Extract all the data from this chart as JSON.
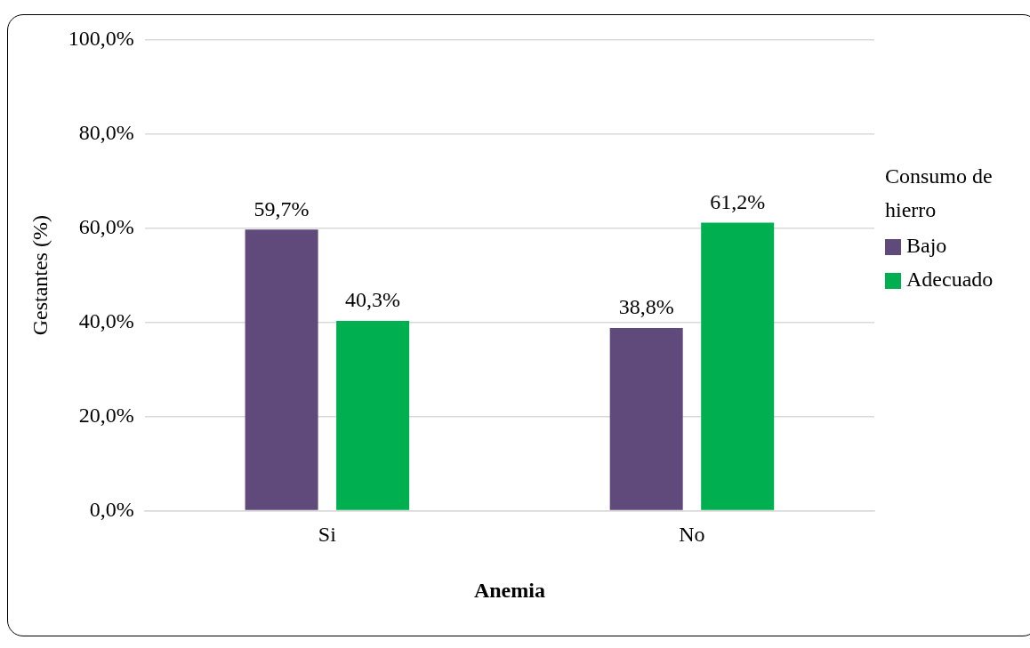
{
  "chart_data": {
    "type": "bar",
    "xlabel": "Anemia",
    "ylabel": "Gestantes (%)",
    "legend_title": "Consumo de hierro",
    "categories": [
      "Si",
      "No"
    ],
    "series": [
      {
        "name": "Bajo",
        "color": "#604a7b",
        "values": [
          59.7,
          38.8
        ],
        "value_labels": [
          "59,7%",
          "38,8%"
        ]
      },
      {
        "name": "Adecuado",
        "color": "#00b050",
        "values": [
          40.3,
          61.2
        ],
        "value_labels": [
          "40,3%",
          "61,2%"
        ]
      }
    ],
    "ylim": [
      0,
      100
    ],
    "yticks": [
      {
        "value": 0,
        "label": "0,0%"
      },
      {
        "value": 20,
        "label": "20,0%"
      },
      {
        "value": 40,
        "label": "40,0%"
      },
      {
        "value": 60,
        "label": "60,0%"
      },
      {
        "value": 80,
        "label": "80,0%"
      },
      {
        "value": 100,
        "label": "100,0%"
      }
    ],
    "grid": "y",
    "legend": "right"
  }
}
